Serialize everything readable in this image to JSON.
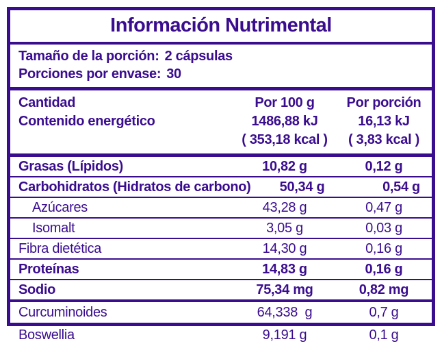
{
  "colors": {
    "accent": "#3a0d8f",
    "background": "#ffffff"
  },
  "title": "Información Nutrimental",
  "serving": {
    "portion_label": "Tamaño de la porción:",
    "portion_value": "2 cápsulas",
    "per_container_label": "Porciones por envase:",
    "per_container_value": "30"
  },
  "header": {
    "amount_label": "Cantidad",
    "energy_label": "Contenido energético",
    "per100_label": "Por 100 g",
    "per100_energy_kj": "1486,88 kJ",
    "per100_energy_kcal": "( 353,18 kcal )",
    "portion_col_label": "Por porción",
    "portion_energy_kj": "16,13 kJ",
    "portion_energy_kcal": "( 3,83 kcal )"
  },
  "rows": [
    {
      "label": "Grasas (Lípidos)",
      "per100": "10,82 g",
      "per_portion": "0,12 g"
    },
    {
      "label": "Carbohidratos (Hidratos de carbono)",
      "per100": "50,34 g",
      "per_portion": "0,54 g"
    },
    {
      "label": "Azúcares",
      "per100": "43,28 g",
      "per_portion": "0,47 g"
    },
    {
      "label": "Isomalt",
      "per100": "3,05 g",
      "per_portion": "0,03 g"
    },
    {
      "label": "Fibra dietética",
      "per100": "14,30 g",
      "per_portion": "0,16 g"
    },
    {
      "label": "Proteínas",
      "per100": "14,83 g",
      "per_portion": "0,16 g"
    },
    {
      "label": "Sodio",
      "per100": "75,34 mg",
      "per_portion": "0,82 mg"
    }
  ],
  "extra_rows": [
    {
      "label": "Curcuminoides",
      "per100": "64,338  g",
      "per_portion": "0,7 g"
    },
    {
      "label": "Boswellia",
      "per100": "9,191 g",
      "per_portion": "0,1 g"
    }
  ]
}
